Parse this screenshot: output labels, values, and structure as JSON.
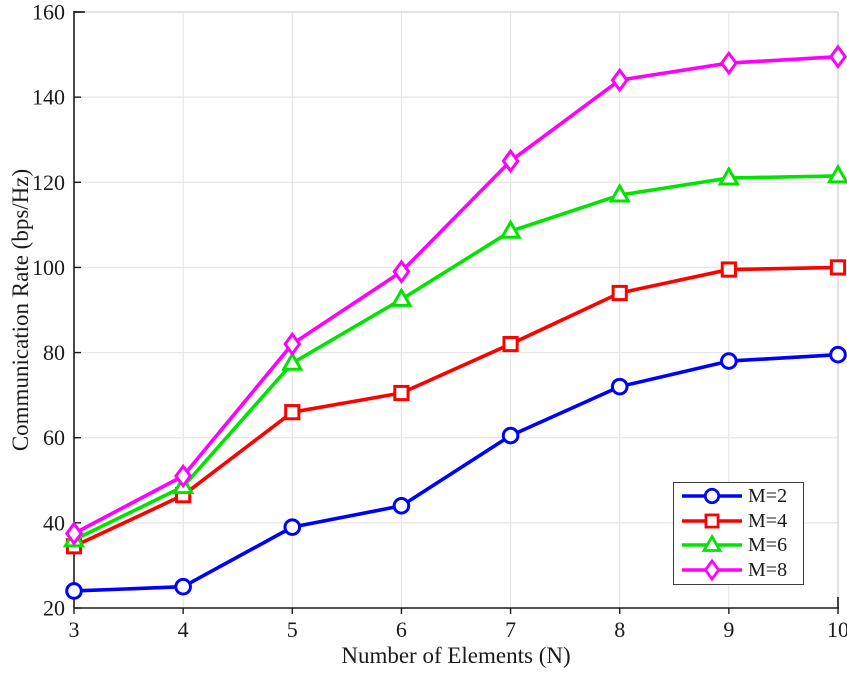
{
  "figure": {
    "background": "#ffffff"
  },
  "colors": {
    "axis": "#1a1a1a",
    "grid": "#e6e6e6",
    "border_light": "#d9d9d9",
    "tick_label": "#1a1a1a",
    "legend_border": "#3c3c3c",
    "marker_fill": "#ffffff"
  },
  "chart_data": {
    "type": "line",
    "title": "",
    "xlabel": "Number of Elements (N)",
    "ylabel": "Communication Rate (bps/Hz)",
    "x": [
      3,
      4,
      5,
      6,
      7,
      8,
      9,
      10
    ],
    "xlim": [
      3,
      10
    ],
    "ylim": [
      20,
      160
    ],
    "xticks": [
      3,
      4,
      5,
      6,
      7,
      8,
      9,
      10
    ],
    "yticks": [
      20,
      40,
      60,
      80,
      100,
      120,
      140,
      160
    ],
    "grid": true,
    "legend_position": "lower-right",
    "series": [
      {
        "name": "M=2",
        "color": "#0000ff",
        "marker": "circle",
        "values": [
          24,
          25,
          39,
          44,
          60.5,
          72,
          78,
          79.5
        ]
      },
      {
        "name": "M=4",
        "color": "#ff0000",
        "marker": "square",
        "values": [
          34.5,
          46.5,
          66,
          70.5,
          82,
          94,
          99.5,
          100
        ]
      },
      {
        "name": "M=6",
        "color": "#00e400",
        "marker": "triangle",
        "values": [
          36,
          48.5,
          77.5,
          92.5,
          108.5,
          117,
          121,
          121.5
        ]
      },
      {
        "name": "M=8",
        "color": "#ff00ff",
        "marker": "diamond",
        "values": [
          37.5,
          51,
          82,
          99,
          125,
          144,
          148,
          149.5
        ]
      }
    ]
  }
}
